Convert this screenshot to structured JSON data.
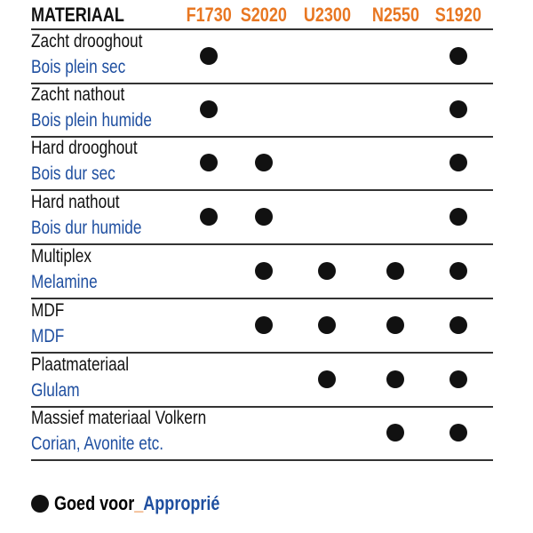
{
  "header": {
    "material_label": "MATERIAAL",
    "columns": [
      "F1730",
      "S2020",
      "U2300",
      "N2550",
      "S1920"
    ]
  },
  "rows": [
    {
      "nl": "Zacht drooghout",
      "fr": "Bois plein sec",
      "suitable": [
        true,
        false,
        false,
        false,
        true
      ]
    },
    {
      "nl": "Zacht nathout",
      "fr": "Bois plein humide",
      "suitable": [
        true,
        false,
        false,
        false,
        true
      ]
    },
    {
      "nl": "Hard drooghout",
      "fr": "Bois dur sec",
      "suitable": [
        true,
        true,
        false,
        false,
        true
      ]
    },
    {
      "nl": "Hard nathout",
      "fr": "Bois dur humide",
      "suitable": [
        true,
        true,
        false,
        false,
        true
      ]
    },
    {
      "nl": "Multiplex",
      "fr": "Melamine",
      "suitable": [
        false,
        true,
        true,
        true,
        true
      ]
    },
    {
      "nl": "MDF",
      "fr": "MDF",
      "suitable": [
        false,
        true,
        true,
        true,
        true
      ]
    },
    {
      "nl": "Plaatmateriaal",
      "fr": "Glulam",
      "suitable": [
        false,
        false,
        true,
        true,
        true
      ]
    },
    {
      "nl": "Massief materiaal Volkern",
      "fr": "Corian, Avonite etc.",
      "suitable": [
        false,
        false,
        false,
        true,
        true
      ]
    }
  ],
  "legend": {
    "nl": "Goed voor",
    "separator": "_",
    "fr": "Approprié"
  },
  "colors": {
    "header_codes": "#e87722",
    "french_text": "#1f4fa0",
    "dot": "#111111"
  }
}
